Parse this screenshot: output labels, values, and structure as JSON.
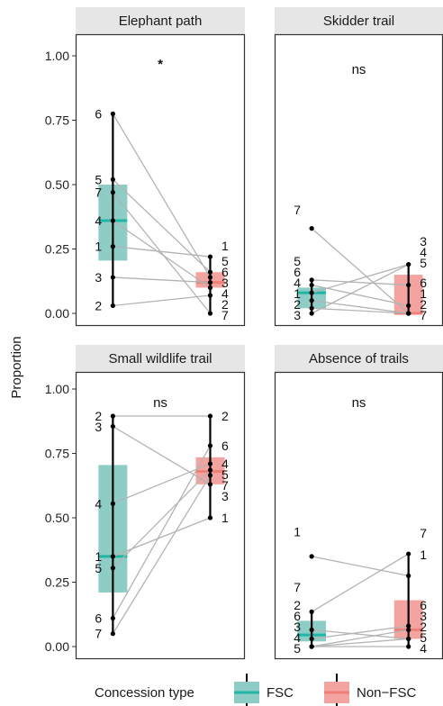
{
  "chart_data": {
    "type": "boxplot",
    "ylabel": "Proportion",
    "ylim": [
      0,
      1
    ],
    "yticks": [
      "0.00",
      "0.25",
      "0.50",
      "0.75",
      "1.00"
    ],
    "yticks_values": [
      0,
      0.25,
      0.5,
      0.75,
      1
    ],
    "grid": false,
    "legend": {
      "title": "Concession type",
      "position": "bottom",
      "items": [
        {
          "label": "FSC",
          "fill": "#8ecdc6",
          "median": "#21b5a5"
        },
        {
          "label": "Non−FSC",
          "fill": "#f3a3a0",
          "median": "#f07f78"
        }
      ]
    },
    "colors": {
      "fsc_fill": "#8ecdc6",
      "fsc_median": "#21b5a5",
      "nonfsc_fill": "#f3a3a0",
      "nonfsc_median": "#f07f78",
      "strip": "#e6e6e6",
      "pair_line": "#b3b3b3"
    },
    "panels": [
      {
        "title": "Elephant path",
        "significance": "*",
        "fsc": {
          "min": 0.03,
          "q1": 0.205,
          "median": 0.36,
          "q3": 0.5,
          "max": 0.775
        },
        "nonfsc": {
          "min": 0.0,
          "q1": 0.1,
          "median": 0.12,
          "q3": 0.16,
          "max": 0.22
        },
        "pairs": [
          {
            "id": "1",
            "fsc": 0.26,
            "nonfsc": 0.22
          },
          {
            "id": "2",
            "fsc": 0.03,
            "nonfsc": 0.07
          },
          {
            "id": "3",
            "fsc": 0.14,
            "nonfsc": 0.12
          },
          {
            "id": "4",
            "fsc": 0.36,
            "nonfsc": 0.1
          },
          {
            "id": "5",
            "fsc": 0.52,
            "nonfsc": 0.16
          },
          {
            "id": "6",
            "fsc": 0.775,
            "nonfsc": 0.14
          },
          {
            "id": "7",
            "fsc": 0.47,
            "nonfsc": 0.0
          }
        ]
      },
      {
        "title": "Skidder trail",
        "significance": "ns",
        "fsc": {
          "min": 0.0,
          "q1": 0.02,
          "median": 0.08,
          "q3": 0.1,
          "max": 0.13
        },
        "nonfsc": {
          "min": 0.0,
          "q1": 0.0,
          "median": 0.0,
          "q3": 0.15,
          "max": 0.19
        },
        "pairs": [
          {
            "id": "1",
            "fsc": 0.05,
            "nonfsc": 0.0
          },
          {
            "id": "2",
            "fsc": 0.02,
            "nonfsc": 0.0
          },
          {
            "id": "3",
            "fsc": 0.0,
            "nonfsc": 0.19
          },
          {
            "id": "4",
            "fsc": 0.08,
            "nonfsc": 0.19
          },
          {
            "id": "5",
            "fsc": 0.13,
            "nonfsc": 0.11
          },
          {
            "id": "6",
            "fsc": 0.11,
            "nonfsc": 0.03
          },
          {
            "id": "7",
            "fsc": 0.33,
            "nonfsc": 0.0
          }
        ]
      },
      {
        "title": "Small wildlife trail",
        "significance": "ns",
        "fsc": {
          "min": 0.05,
          "q1": 0.21,
          "median": 0.35,
          "q3": 0.705,
          "max": 0.895
        },
        "nonfsc": {
          "min": 0.5,
          "q1": 0.63,
          "median": 0.68,
          "q3": 0.735,
          "max": 0.895
        },
        "pairs": [
          {
            "id": "1",
            "fsc": 0.35,
            "nonfsc": 0.5
          },
          {
            "id": "2",
            "fsc": 0.895,
            "nonfsc": 0.895
          },
          {
            "id": "3",
            "fsc": 0.855,
            "nonfsc": 0.63
          },
          {
            "id": "4",
            "fsc": 0.555,
            "nonfsc": 0.71
          },
          {
            "id": "5",
            "fsc": 0.305,
            "nonfsc": 0.685
          },
          {
            "id": "6",
            "fsc": 0.11,
            "nonfsc": 0.78
          },
          {
            "id": "7",
            "fsc": 0.05,
            "nonfsc": 0.665
          }
        ]
      },
      {
        "title": "Absence of trails",
        "significance": "ns",
        "fsc": {
          "min": 0.0,
          "q1": 0.02,
          "median": 0.045,
          "q3": 0.1,
          "max": 0.135
        },
        "nonfsc": {
          "min": 0.0,
          "q1": 0.03,
          "median": 0.065,
          "q3": 0.18,
          "max": 0.36
        },
        "pairs": [
          {
            "id": "1",
            "fsc": 0.35,
            "nonfsc": 0.275
          },
          {
            "id": "2",
            "fsc": 0.065,
            "nonfsc": 0.03
          },
          {
            "id": "3",
            "fsc": 0.0,
            "nonfsc": 0.065
          },
          {
            "id": "4",
            "fsc": 0.0,
            "nonfsc": 0.0
          },
          {
            "id": "5",
            "fsc": 0.0,
            "nonfsc": 0.03
          },
          {
            "id": "6",
            "fsc": 0.03,
            "nonfsc": 0.08
          },
          {
            "id": "7",
            "fsc": 0.135,
            "nonfsc": 0.36
          }
        ]
      }
    ]
  }
}
